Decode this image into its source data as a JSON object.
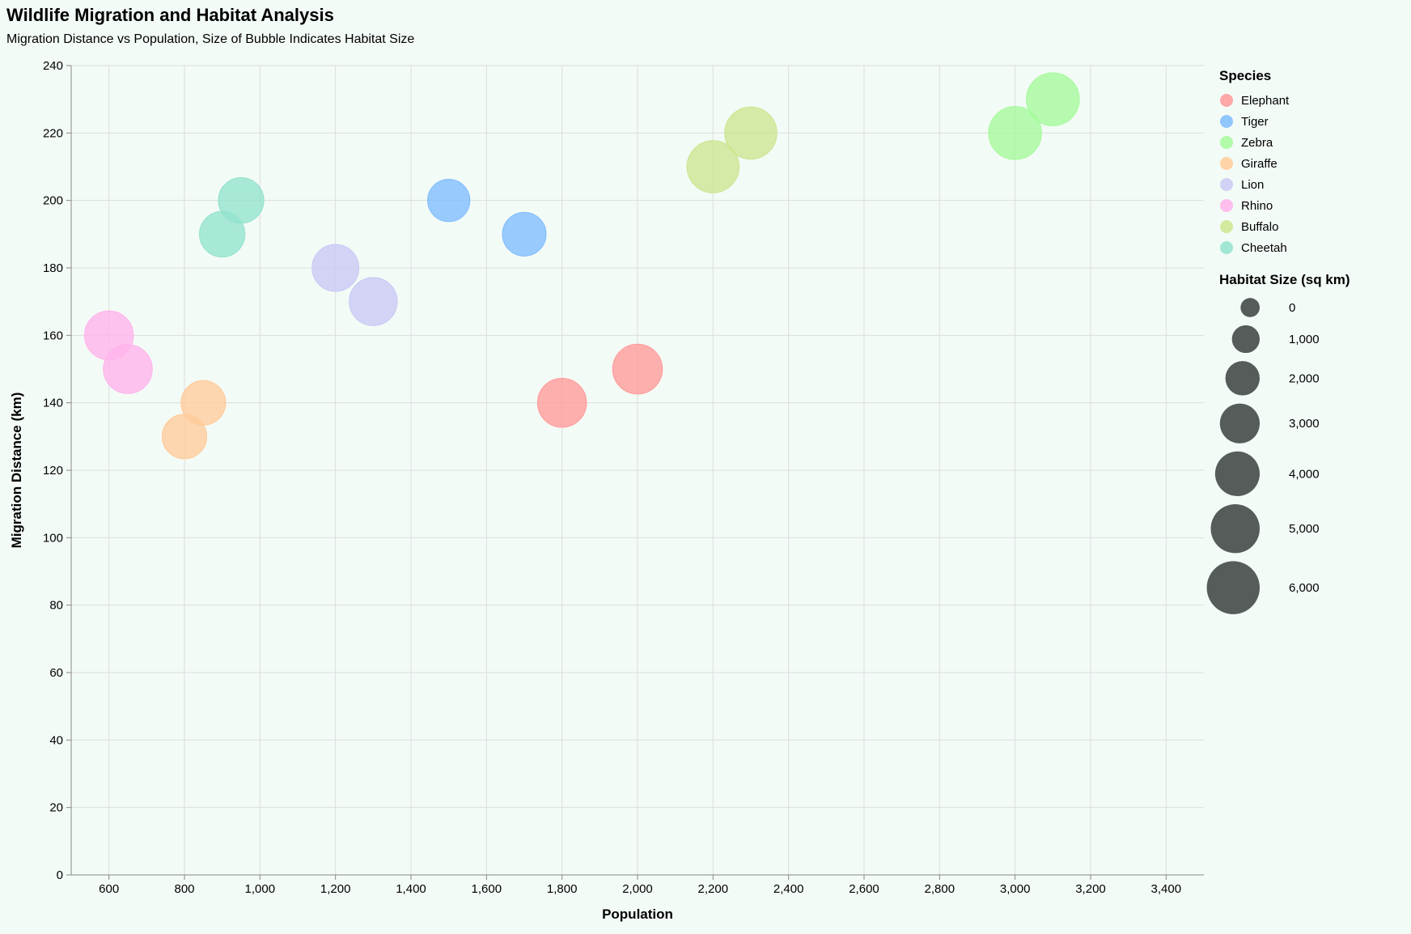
{
  "chart_data": {
    "type": "scatter",
    "title": "Wildlife Migration and Habitat Analysis",
    "subtitle": "Migration Distance vs Population, Size of Bubble Indicates Habitat Size",
    "xlabel": "Population",
    "ylabel": "Migration Distance (km)",
    "xlim": [
      500,
      3500
    ],
    "ylim": [
      0,
      240
    ],
    "xticks": [
      "600",
      "800",
      "1,000",
      "1,200",
      "1,400",
      "1,600",
      "1,800",
      "2,000",
      "2,200",
      "2,400",
      "2,600",
      "2,800",
      "3,000",
      "3,200",
      "3,400"
    ],
    "xtick_values": [
      600,
      800,
      1000,
      1200,
      1400,
      1600,
      1800,
      2000,
      2200,
      2400,
      2600,
      2800,
      3000,
      3200,
      3400
    ],
    "yticks": [
      "0",
      "20",
      "40",
      "60",
      "80",
      "100",
      "120",
      "140",
      "160",
      "180",
      "200",
      "220",
      "240"
    ],
    "ytick_values": [
      0,
      20,
      40,
      60,
      80,
      100,
      120,
      140,
      160,
      180,
      200,
      220,
      240
    ],
    "grid": true,
    "legend_position": "right",
    "color_legend_title": "Species",
    "size_legend_title": "Habitat Size (sq km)",
    "size_legend_values": [
      0,
      1000,
      2000,
      3000,
      4000,
      5000,
      6000
    ],
    "size_legend_labels": [
      "0",
      "1,000",
      "2,000",
      "3,000",
      "4,000",
      "5,000",
      "6,000"
    ],
    "series": [
      {
        "name": "Elephant",
        "color": "#ff9a9a",
        "points": [
          {
            "x": 1800,
            "y": 140,
            "size": 5000
          },
          {
            "x": 2000,
            "y": 150,
            "size": 5200
          }
        ]
      },
      {
        "name": "Tiger",
        "color": "#7ebcff",
        "points": [
          {
            "x": 1500,
            "y": 200,
            "size": 3500
          },
          {
            "x": 1700,
            "y": 190,
            "size": 3800
          }
        ]
      },
      {
        "name": "Zebra",
        "color": "#a4fa9b",
        "points": [
          {
            "x": 3000,
            "y": 220,
            "size": 6000
          },
          {
            "x": 3100,
            "y": 230,
            "size": 6000
          }
        ]
      },
      {
        "name": "Giraffe",
        "color": "#ffcb9a",
        "points": [
          {
            "x": 800,
            "y": 130,
            "size": 4000
          },
          {
            "x": 850,
            "y": 140,
            "size": 4000
          }
        ]
      },
      {
        "name": "Lion",
        "color": "#c9c9f5",
        "points": [
          {
            "x": 1200,
            "y": 180,
            "size": 4500
          },
          {
            "x": 1300,
            "y": 170,
            "size": 4800
          }
        ]
      },
      {
        "name": "Rhino",
        "color": "#ffb3ec",
        "points": [
          {
            "x": 600,
            "y": 160,
            "size": 5000
          },
          {
            "x": 650,
            "y": 150,
            "size": 5000
          }
        ]
      },
      {
        "name": "Buffalo",
        "color": "#cbe68f",
        "points": [
          {
            "x": 2200,
            "y": 210,
            "size": 5800
          },
          {
            "x": 2300,
            "y": 220,
            "size": 5800
          }
        ]
      },
      {
        "name": "Cheetah",
        "color": "#92e3cd",
        "points": [
          {
            "x": 900,
            "y": 190,
            "size": 4200
          },
          {
            "x": 950,
            "y": 200,
            "size": 4200
          }
        ]
      }
    ]
  }
}
